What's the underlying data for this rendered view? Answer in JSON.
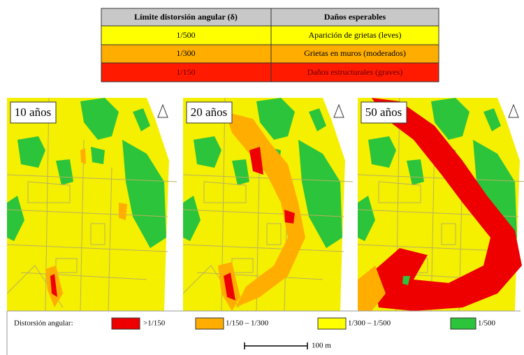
{
  "table": {
    "header": [
      "Límite distorsión angular (δ)",
      "Daños esperables"
    ],
    "rows": [
      [
        "1/500",
        "Aparición de grietas (leves)"
      ],
      [
        "1/300",
        "Grietas en muros (moderados)"
      ],
      [
        "1/150",
        "Daños estructurales (graves)"
      ]
    ]
  },
  "panels": [
    {
      "label": "10 años"
    },
    {
      "label": "20 años"
    },
    {
      "label": "50 años"
    }
  ],
  "legend": {
    "title": "Distorsión angular:",
    "items": [
      ">1/150",
      "1/150 – 1/300",
      "1/300 – 1/500",
      "1/500"
    ]
  },
  "scale": "100 m"
}
